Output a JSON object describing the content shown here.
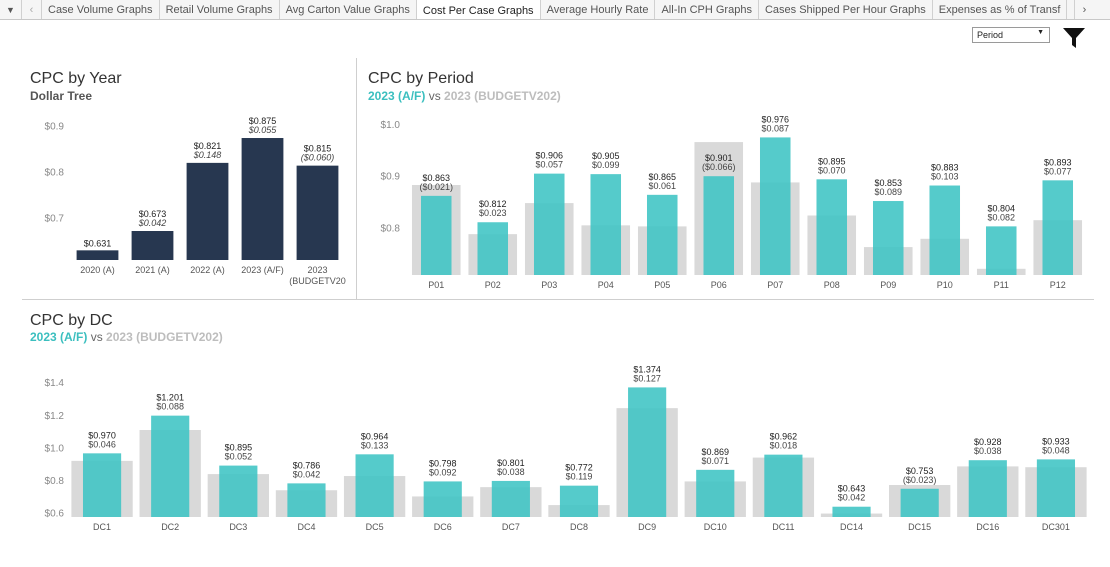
{
  "tabs": [
    {
      "label": "Case Volume Graphs",
      "active": false
    },
    {
      "label": "Retail Volume Graphs",
      "active": false
    },
    {
      "label": "Avg Carton Value Graphs",
      "active": false
    },
    {
      "label": "Cost Per Case Graphs",
      "active": true
    },
    {
      "label": "Average Hourly Rate",
      "active": false
    },
    {
      "label": "All-In CPH Graphs",
      "active": false
    },
    {
      "label": "Cases Shipped Per Hour Graphs",
      "active": false
    },
    {
      "label": "Expenses as % of Transf",
      "active": false
    }
  ],
  "filter": {
    "selected": "Period"
  },
  "year_panel": {
    "title": "CPC by Year",
    "subtitle": "Dollar Tree"
  },
  "period_panel": {
    "title": "CPC by Period",
    "subtitle_a": "2023 (A/F)",
    "subtitle_vs": "vs",
    "subtitle_b": "2023 (BUDGETV202)"
  },
  "dc_panel": {
    "title": "CPC by DC",
    "subtitle_a": "2023 (A/F)",
    "subtitle_vs": "vs",
    "subtitle_b": "2023 (BUDGETV202)"
  },
  "colors": {
    "navy": "#273750",
    "teal": "#3dc4c4",
    "budget_grey": "#d9d9d9",
    "axis_text": "#888888"
  },
  "chart_data": [
    {
      "type": "bar",
      "name": "cpc-by-year",
      "categories": [
        "2020 (A)",
        "2021 (A)",
        "2022 (A)",
        "2023 (A/F)",
        "2023 (BUDGETV20"
      ],
      "values": [
        0.631,
        0.673,
        0.821,
        0.875,
        0.815
      ],
      "value_labels": [
        "$0.631",
        "$0.673",
        "$0.821",
        "$0.875",
        "$0.815"
      ],
      "change_labels": [
        "",
        "$0.042",
        "$0.148",
        "$0.055",
        "($0.060)"
      ],
      "yticks": [
        0.7,
        0.8,
        0.9
      ],
      "ytick_labels": [
        "$0.7",
        "$0.8",
        "$0.9"
      ],
      "ylim": [
        0.61,
        0.925
      ]
    },
    {
      "type": "bar",
      "name": "cpc-by-period",
      "categories": [
        "P01",
        "P02",
        "P03",
        "P04",
        "P05",
        "P06",
        "P07",
        "P08",
        "P09",
        "P10",
        "P11",
        "P12"
      ],
      "series": [
        {
          "name": "2023 (A/F)",
          "values": [
            0.863,
            0.812,
            0.906,
            0.905,
            0.865,
            0.901,
            0.976,
            0.895,
            0.853,
            0.883,
            0.804,
            0.893
          ]
        },
        {
          "name": "2023 (BUDGETV202)",
          "values": [
            0.884,
            0.789,
            0.849,
            0.806,
            0.804,
            0.967,
            0.889,
            0.825,
            0.764,
            0.78,
            0.722,
            0.816
          ]
        }
      ],
      "value_labels": [
        "$0.863",
        "$0.812",
        "$0.906",
        "$0.905",
        "$0.865",
        "$0.901",
        "$0.976",
        "$0.895",
        "$0.853",
        "$0.883",
        "$0.804",
        "$0.893"
      ],
      "change_labels": [
        "($0.021)",
        "$0.023",
        "$0.057",
        "$0.099",
        "$0.061",
        "($0.066)",
        "$0.087",
        "$0.070",
        "$0.089",
        "$0.103",
        "$0.082",
        "$0.077"
      ],
      "yticks": [
        0.8,
        0.9,
        1.0
      ],
      "ytick_labels": [
        "$0.8",
        "$0.9",
        "$1.0"
      ],
      "ylim": [
        0.71,
        1.0
      ]
    },
    {
      "type": "bar",
      "name": "cpc-by-dc",
      "categories": [
        "DC1",
        "DC2",
        "DC3",
        "DC4",
        "DC5",
        "DC6",
        "DC7",
        "DC8",
        "DC9",
        "DC10",
        "DC11",
        "DC14",
        "DC15",
        "DC16",
        "DC301"
      ],
      "series": [
        {
          "name": "2023 (A/F)",
          "values": [
            0.97,
            1.201,
            0.895,
            0.786,
            0.964,
            0.798,
            0.801,
            0.772,
            1.374,
            0.869,
            0.962,
            0.643,
            0.753,
            0.928,
            0.933
          ]
        },
        {
          "name": "2023 (BUDGETV202)",
          "values": [
            0.924,
            1.113,
            0.843,
            0.744,
            0.831,
            0.706,
            0.763,
            0.653,
            1.247,
            0.798,
            0.944,
            0.601,
            0.776,
            0.89,
            0.885
          ]
        }
      ],
      "value_labels": [
        "$0.970",
        "$1.201",
        "$0.895",
        "$0.786",
        "$0.964",
        "$0.798",
        "$0.801",
        "$0.772",
        "$1.374",
        "$0.869",
        "$0.962",
        "$0.643",
        "$0.753",
        "$0.928",
        "$0.933"
      ],
      "change_labels": [
        "$0.046",
        "$0.088",
        "$0.052",
        "$0.042",
        "$0.133",
        "$0.092",
        "$0.038",
        "$0.119",
        "$0.127",
        "$0.071",
        "$0.018",
        "$0.042",
        "($0.023)",
        "$0.038",
        "$0.048"
      ],
      "yticks": [
        0.6,
        0.8,
        1.0,
        1.2,
        1.4
      ],
      "ytick_labels": [
        "$0.6",
        "$0.8",
        "$1.0",
        "$1.2",
        "$1.4"
      ],
      "ylim": [
        0.58,
        1.45
      ]
    }
  ]
}
